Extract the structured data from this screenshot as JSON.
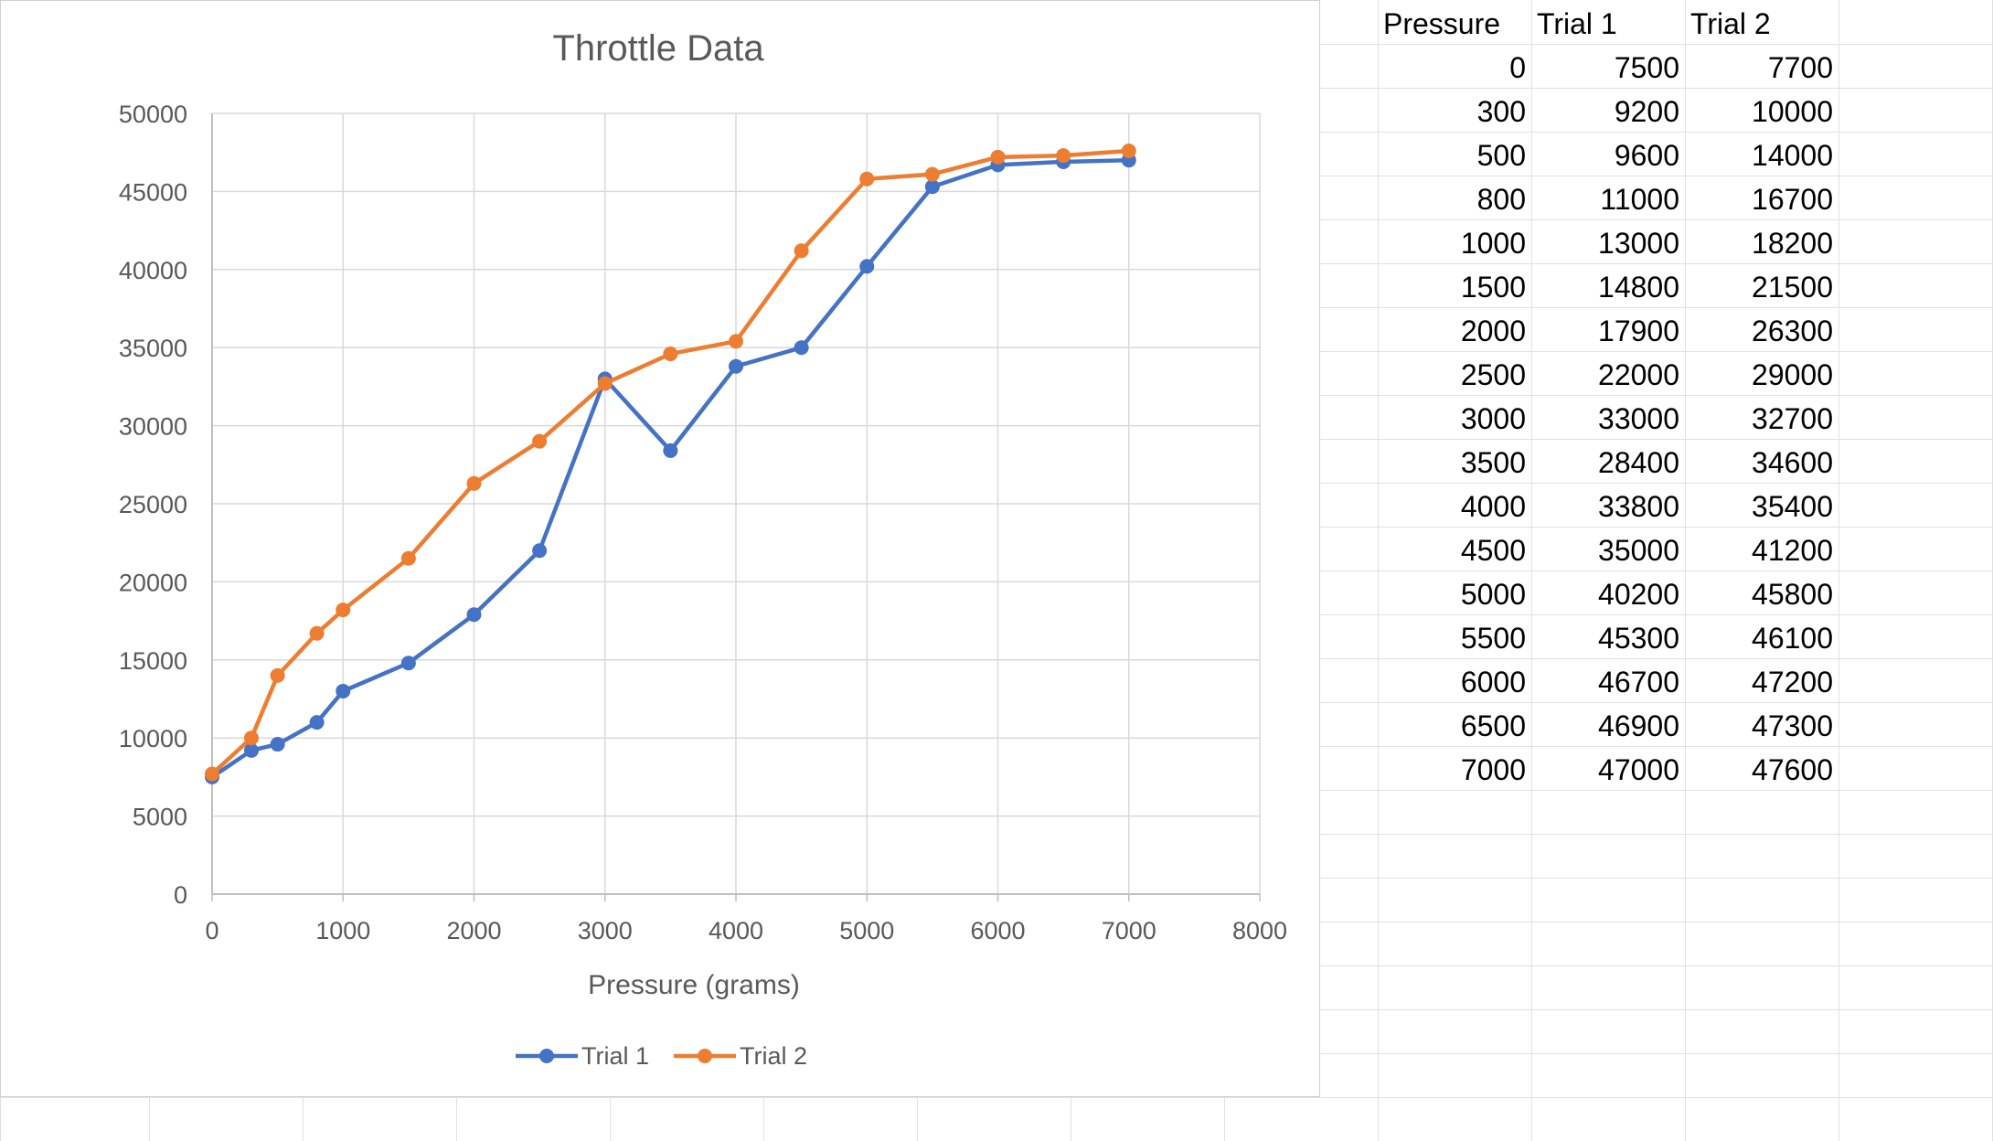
{
  "spreadsheet": {
    "headers": [
      "Pressure",
      "Trial 1",
      "Trial 2"
    ],
    "rows": [
      [
        "0",
        "7500",
        "7700"
      ],
      [
        "300",
        "9200",
        "10000"
      ],
      [
        "500",
        "9600",
        "14000"
      ],
      [
        "800",
        "11000",
        "16700"
      ],
      [
        "1000",
        "13000",
        "18200"
      ],
      [
        "1500",
        "14800",
        "21500"
      ],
      [
        "2000",
        "17900",
        "26300"
      ],
      [
        "2500",
        "22000",
        "29000"
      ],
      [
        "3000",
        "33000",
        "32700"
      ],
      [
        "3500",
        "28400",
        "34600"
      ],
      [
        "4000",
        "33800",
        "35400"
      ],
      [
        "4500",
        "35000",
        "41200"
      ],
      [
        "5000",
        "40200",
        "45800"
      ],
      [
        "5500",
        "45300",
        "46100"
      ],
      [
        "6000",
        "46700",
        "47200"
      ],
      [
        "6500",
        "46900",
        "47300"
      ],
      [
        "7000",
        "47000",
        "47600"
      ]
    ]
  },
  "chart_data": {
    "type": "line",
    "title": "Throttle Data",
    "xlabel": "Pressure (grams)",
    "ylabel": "",
    "x": [
      0,
      300,
      500,
      800,
      1000,
      1500,
      2000,
      2500,
      3000,
      3500,
      4000,
      4500,
      5000,
      5500,
      6000,
      6500,
      7000
    ],
    "series": [
      {
        "name": "Trial 1",
        "color": "#4472c4",
        "values": [
          7500,
          9200,
          9600,
          11000,
          13000,
          14800,
          17900,
          22000,
          33000,
          28400,
          33800,
          35000,
          40200,
          45300,
          46700,
          46900,
          47000
        ]
      },
      {
        "name": "Trial 2",
        "color": "#ed7d31",
        "values": [
          7700,
          10000,
          14000,
          16700,
          18200,
          21500,
          26300,
          29000,
          32700,
          34600,
          35400,
          41200,
          45800,
          46100,
          47200,
          47300,
          47600
        ]
      }
    ],
    "xlim": [
      0,
      8000
    ],
    "ylim": [
      0,
      50000
    ],
    "xticks": [
      "0",
      "1000",
      "2000",
      "3000",
      "4000",
      "5000",
      "6000",
      "7000",
      "8000"
    ],
    "yticks": [
      "0",
      "5000",
      "10000",
      "15000",
      "20000",
      "25000",
      "30000",
      "35000",
      "40000",
      "45000",
      "50000"
    ],
    "grid": true,
    "legend": "bottom",
    "markers": true
  }
}
